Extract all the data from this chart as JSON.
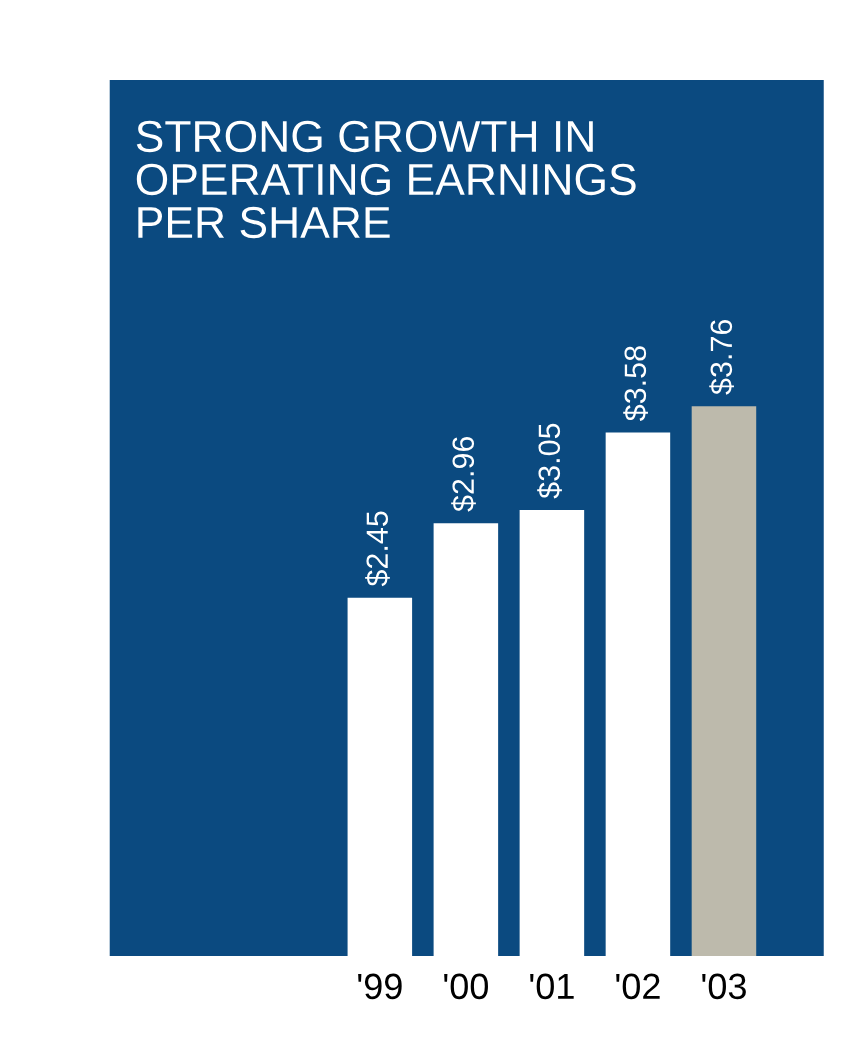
{
  "chart_data": {
    "type": "bar",
    "title": "STRONG GROWTH IN\nOPERATING EARNINGS\nPER SHARE",
    "categories": [
      "'99",
      "'00",
      "'01",
      "'02",
      "'03"
    ],
    "values": [
      2.45,
      2.96,
      3.05,
      3.58,
      3.76
    ],
    "value_labels": [
      "$2.45",
      "$2.96",
      "$3.05",
      "$3.58",
      "$3.76"
    ],
    "colors": [
      "#ffffff",
      "#ffffff",
      "#ffffff",
      "#ffffff",
      "#bdbaac"
    ],
    "grid": false,
    "legend": false,
    "tick_labels": "x"
  }
}
